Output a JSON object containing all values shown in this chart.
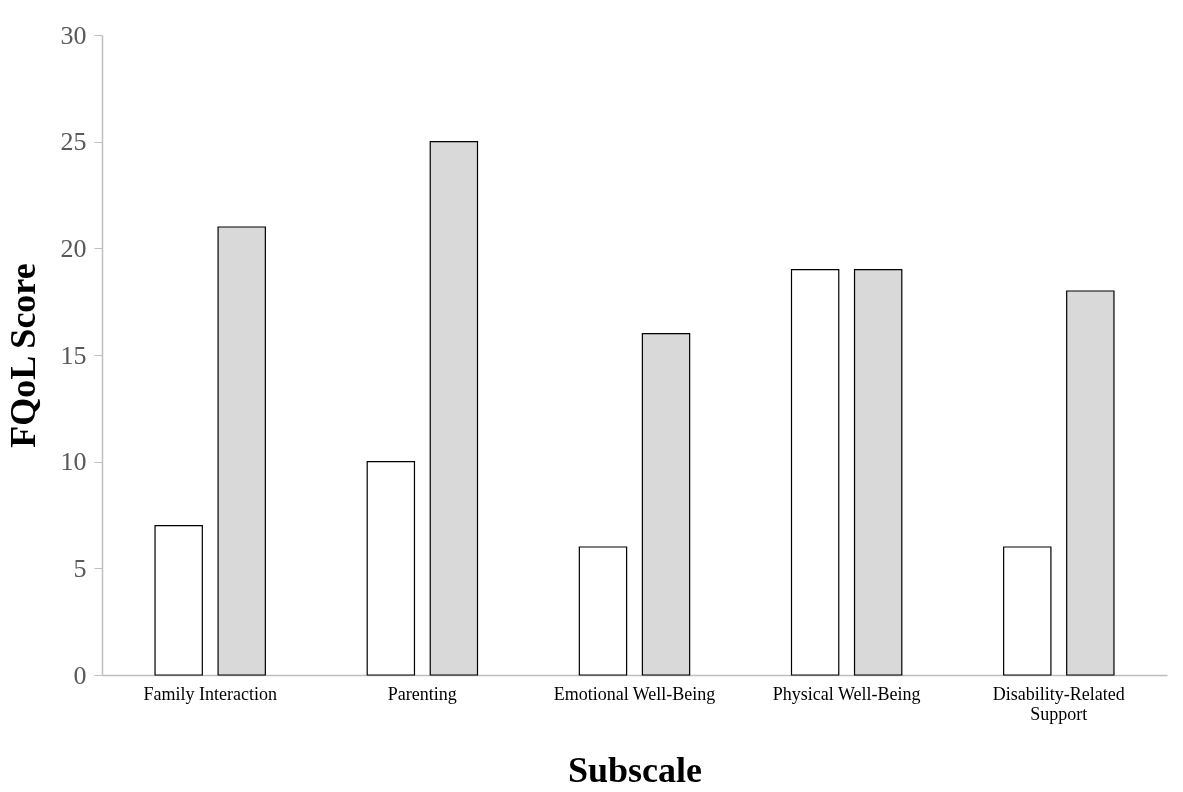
{
  "chart_data": {
    "type": "bar",
    "xlabel": "Subscale",
    "ylabel": "FQoL Score",
    "categories": [
      "Family Interaction",
      "Parenting",
      "Emotional Well-Being",
      "Physical Well-Being",
      "Disability-Related Support"
    ],
    "series": [
      {
        "color": "#ffffff",
        "values": [
          7,
          10,
          6,
          19,
          6
        ]
      },
      {
        "color": "#d9d9d9",
        "values": [
          21,
          25,
          16,
          19,
          18
        ]
      }
    ],
    "ylim": [
      0,
      30
    ],
    "yticks": [
      0,
      5,
      10,
      15,
      20,
      25,
      30
    ],
    "grid": false,
    "legend": false
  }
}
